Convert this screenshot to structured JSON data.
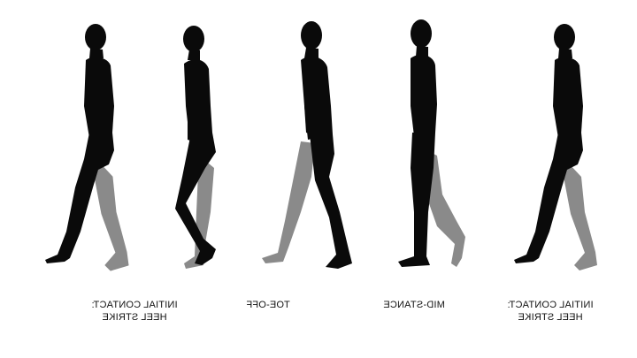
{
  "phases": [
    {
      "line1": "INITIAL CONTACT:",
      "line2": "HEEL STRIKE"
    },
    {
      "line1": "",
      "line2": ""
    },
    {
      "line1": "TOE-OFF",
      "line2": ""
    },
    {
      "line1": "MID-STANCE",
      "line2": ""
    },
    {
      "line1": "INITIAL CONTACT:",
      "line2": "HEEL STRIKE"
    }
  ],
  "colors": {
    "near_leg": "#0a0a0a",
    "far_leg": "#8a8a8a",
    "background": "#ffffff"
  },
  "labels_mirrored": true
}
